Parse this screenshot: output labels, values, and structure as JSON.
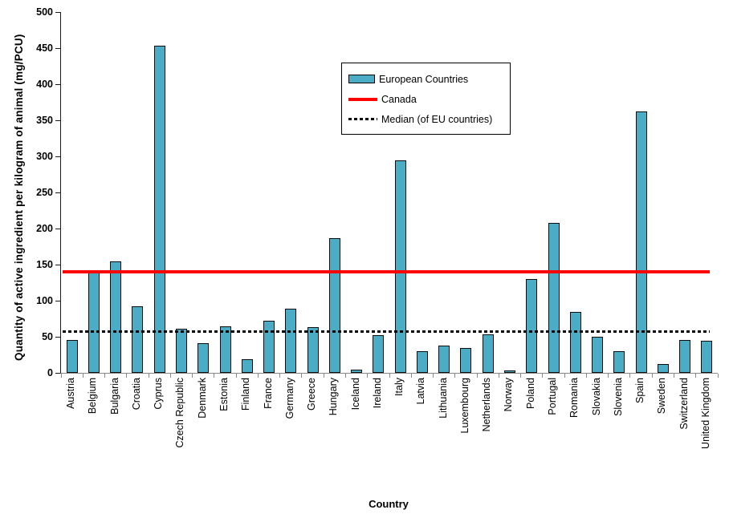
{
  "chart_data": {
    "type": "bar",
    "title": "",
    "xlabel": "Country",
    "ylabel": "Quantity of active ingredient per kilogram of animal (mg/PCU)",
    "ylim": [
      0,
      500
    ],
    "ytick_step": 50,
    "grid": false,
    "legend_position": "top-center-inside",
    "categories": [
      "Austria",
      "Belgium",
      "Bulgaria",
      "Croatia",
      "Cyprus",
      "Czech Republic",
      "Denmark",
      "Estonia",
      "Finland",
      "France",
      "Germany",
      "Greece",
      "Hungary",
      "Iceland",
      "Ireland",
      "Italy",
      "Latvia",
      "Lithuania",
      "Luxembourg",
      "Netherlands",
      "Norway",
      "Poland",
      "Portugal",
      "Romania",
      "Slovakia",
      "Slovenia",
      "Spain",
      "Sweden",
      "Switzerland",
      "United Kingdom"
    ],
    "series": [
      {
        "name": "European Countries",
        "kind": "bar",
        "color": "#4BACC6",
        "border_color": "#0d0d0d",
        "values": [
          46,
          140,
          155,
          92,
          453,
          61,
          41,
          64,
          19,
          72,
          89,
          63,
          187,
          5,
          52,
          295,
          30,
          38,
          35,
          53,
          3,
          130,
          208,
          85,
          50,
          30,
          362,
          12,
          46,
          45
        ]
      },
      {
        "name": "Canada",
        "kind": "hline",
        "style": "solid",
        "color": "#FF0000",
        "value": 140
      },
      {
        "name": "Median (of EU countries)",
        "kind": "hline",
        "style": "dotted",
        "color": "#000000",
        "value": 57
      }
    ]
  },
  "colors": {
    "background": "#ffffff",
    "bar_fill": "#4BACC6",
    "canada_line": "#FF0000",
    "median_line": "#000000",
    "x_axis": "#898989",
    "y_axis": "#1a1a1a"
  }
}
